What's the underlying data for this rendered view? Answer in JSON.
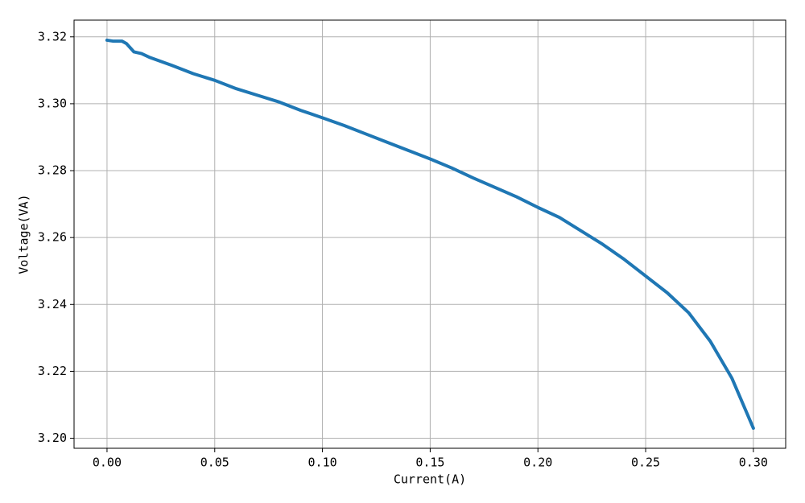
{
  "chart_data": {
    "type": "line",
    "xlabel": "Current(A)",
    "ylabel": "Voltage(VA)",
    "x": [
      0,
      0.003,
      0.007,
      0.009,
      0.0125,
      0.016,
      0.02,
      0.03,
      0.04,
      0.05,
      0.06,
      0.07,
      0.08,
      0.09,
      0.1,
      0.11,
      0.12,
      0.13,
      0.14,
      0.15,
      0.16,
      0.17,
      0.18,
      0.19,
      0.2,
      0.21,
      0.22,
      0.23,
      0.24,
      0.25,
      0.26,
      0.27,
      0.28,
      0.29,
      0.3
    ],
    "series": [
      {
        "name": "Voltage",
        "color": "#1f77b4",
        "values": [
          3.319,
          3.3187,
          3.3187,
          3.318,
          3.3155,
          3.315,
          3.3138,
          3.3115,
          3.309,
          3.307,
          3.3045,
          3.3025,
          3.3005,
          3.298,
          3.2958,
          3.2935,
          3.291,
          3.2885,
          3.286,
          3.2835,
          3.2808,
          3.2778,
          3.275,
          3.2722,
          3.269,
          3.266,
          3.262,
          3.258,
          3.2535,
          3.2485,
          3.2435,
          3.2375,
          3.229,
          3.218,
          3.203
        ]
      }
    ],
    "xlim": [
      -0.0153,
      0.315
    ],
    "ylim": [
      3.197,
      3.325
    ],
    "xticks": [
      {
        "value": 0,
        "label": "0.00"
      },
      0.05,
      {
        "value": 0.1,
        "label": "0.10"
      },
      0.15,
      {
        "value": 0.2,
        "label": "0.20"
      },
      0.25,
      {
        "value": 0.3,
        "label": "0.30"
      }
    ],
    "yticks": [
      {
        "value": 3.2,
        "label": "3.20"
      },
      3.22,
      3.24,
      3.26,
      3.28,
      {
        "value": 3.3,
        "label": "3.30"
      },
      3.32
    ],
    "grid": true
  }
}
